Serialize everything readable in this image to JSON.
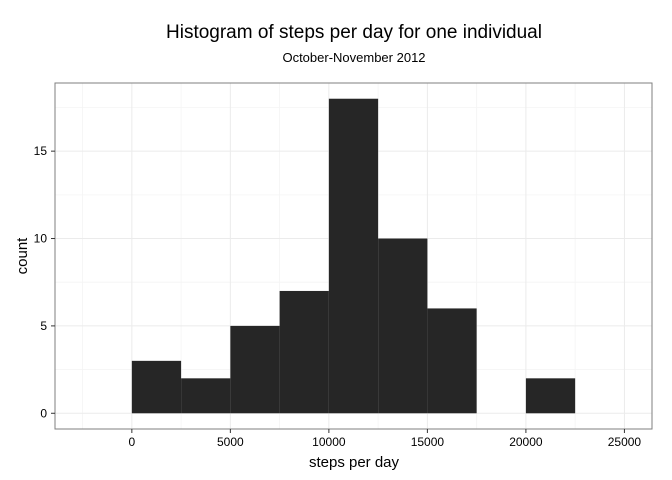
{
  "chart_data": {
    "type": "bar",
    "title": "Histogram of steps per day for one individual",
    "subtitle": "October-November 2012",
    "xlabel": "steps per day",
    "ylabel": "count",
    "bins": [
      {
        "x0": 0,
        "x1": 2500,
        "count": 3
      },
      {
        "x0": 2500,
        "x1": 5000,
        "count": 2
      },
      {
        "x0": 5000,
        "x1": 7500,
        "count": 5
      },
      {
        "x0": 7500,
        "x1": 10000,
        "count": 7
      },
      {
        "x0": 10000,
        "x1": 12500,
        "count": 18
      },
      {
        "x0": 12500,
        "x1": 15000,
        "count": 10
      },
      {
        "x0": 15000,
        "x1": 17500,
        "count": 6
      },
      {
        "x0": 17500,
        "x1": 20000,
        "count": 0
      },
      {
        "x0": 20000,
        "x1": 22500,
        "count": 2
      }
    ],
    "xlim": [
      -3900,
      26400
    ],
    "ylim": [
      -0.9,
      18.9
    ],
    "x_ticks": [
      0,
      5000,
      10000,
      15000,
      20000,
      25000
    ],
    "y_ticks": [
      0,
      5,
      10,
      15
    ],
    "bar_color": "#262626",
    "grid": true,
    "grid_color": "#ebebeb",
    "panel_border_color": "#7f7f7f"
  }
}
